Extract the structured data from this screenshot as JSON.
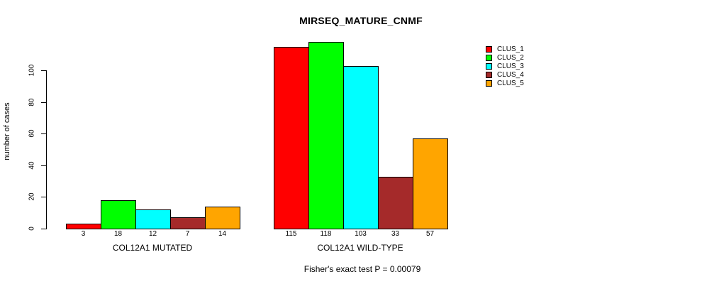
{
  "chart_data": {
    "type": "bar",
    "title": "MIRSEQ_MATURE_CNMF",
    "ylabel": "number of cases",
    "xlabel": "",
    "footnote": "Fisher's exact test P = 0.00079",
    "ylim": [
      0,
      120
    ],
    "yticks": [
      0,
      20,
      40,
      60,
      80,
      100
    ],
    "grid": false,
    "legend_position": "right",
    "categories": [
      "COL12A1 MUTATED",
      "COL12A1 WILD-TYPE"
    ],
    "groups": [
      {
        "label": "COL12A1 MUTATED",
        "values": [
          3,
          18,
          12,
          7,
          14
        ]
      },
      {
        "label": "COL12A1 WILD-TYPE",
        "values": [
          115,
          118,
          103,
          33,
          57
        ]
      }
    ],
    "series": [
      {
        "name": "CLUS_1",
        "color": "#FF0000",
        "values": [
          3,
          115
        ]
      },
      {
        "name": "CLUS_2",
        "color": "#00FF00",
        "values": [
          18,
          118
        ]
      },
      {
        "name": "CLUS_3",
        "color": "#00FFFF",
        "values": [
          12,
          103
        ]
      },
      {
        "name": "CLUS_4",
        "color": "#A52A2A",
        "values": [
          7,
          33
        ]
      },
      {
        "name": "CLUS_5",
        "color": "#FFA500",
        "values": [
          14,
          57
        ]
      }
    ]
  }
}
